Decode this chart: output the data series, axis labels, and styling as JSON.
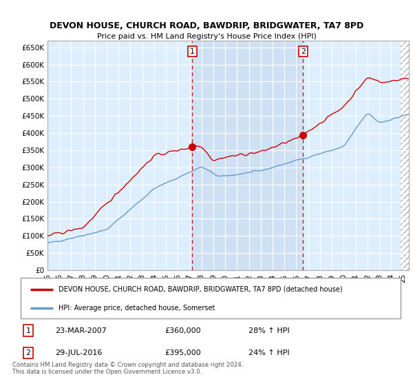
{
  "title": "DEVON HOUSE, CHURCH ROAD, BAWDRIP, BRIDGWATER, TA7 8PD",
  "subtitle": "Price paid vs. HM Land Registry's House Price Index (HPI)",
  "ylabel_ticks": [
    "£0",
    "£50K",
    "£100K",
    "£150K",
    "£200K",
    "£250K",
    "£300K",
    "£350K",
    "£400K",
    "£450K",
    "£500K",
    "£550K",
    "£600K",
    "£650K"
  ],
  "ytick_values": [
    0,
    50000,
    100000,
    150000,
    200000,
    250000,
    300000,
    350000,
    400000,
    450000,
    500000,
    550000,
    600000,
    650000
  ],
  "ylim": [
    0,
    670000
  ],
  "xlim_start": 1995.0,
  "xlim_end": 2025.5,
  "background_color": "#ddeeff",
  "grid_color": "#ffffff",
  "sale1_date": 2007.22,
  "sale1_price": 360000,
  "sale2_date": 2016.57,
  "sale2_price": 395000,
  "legend_label_red": "DEVON HOUSE, CHURCH ROAD, BAWDRIP, BRIDGWATER, TA7 8PD (detached house)",
  "legend_label_blue": "HPI: Average price, detached house, Somerset",
  "annotation1_text": "23-MAR-2007",
  "annotation1_price": "£360,000",
  "annotation1_hpi": "28% ↑ HPI",
  "annotation2_text": "29-JUL-2016",
  "annotation2_price": "£395,000",
  "annotation2_hpi": "24% ↑ HPI",
  "footer": "Contains HM Land Registry data © Crown copyright and database right 2024.\nThis data is licensed under the Open Government Licence v3.0.",
  "red_line_color": "#cc0000",
  "blue_line_color": "#6699cc",
  "dashed_vline_color": "#cc0000",
  "hatch_start": 2024.83,
  "shade_color": "#c8dcf0",
  "future_hatch_color": "#bbbbbb"
}
